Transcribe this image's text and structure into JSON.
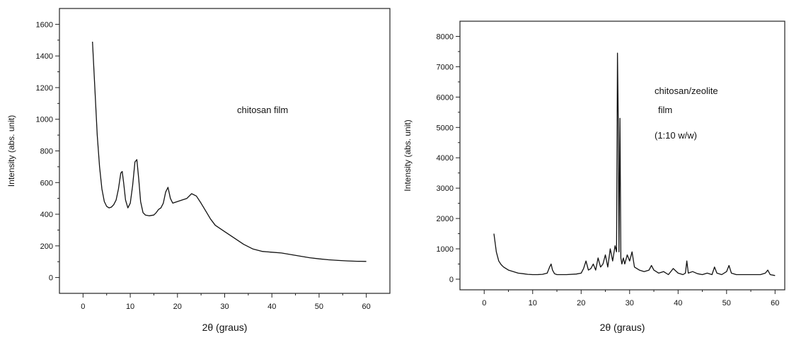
{
  "chart_data": [
    {
      "type": "line",
      "xlabel": "2θ (graus)",
      "ylabel": "Intensity (abs. unit)",
      "xlim": [
        -5,
        65
      ],
      "ylim": [
        -100,
        1700
      ],
      "xticks": [
        0,
        10,
        20,
        30,
        40,
        50,
        60
      ],
      "yticks": [
        0,
        200,
        400,
        600,
        800,
        1000,
        1200,
        1400,
        1600
      ],
      "annotation": [
        "chitosan film"
      ],
      "series": [
        {
          "x": [
            2,
            2.5,
            3,
            3.5,
            4,
            4.5,
            5,
            5.5,
            6,
            6.5,
            7,
            7.5,
            8,
            8.3,
            8.6,
            9,
            9.5,
            10,
            10.5,
            11,
            11.4,
            11.8,
            12.2,
            12.7,
            13.2,
            14,
            15,
            15.5,
            16,
            16.5,
            17,
            17.5,
            18,
            18.5,
            19,
            20,
            21,
            22,
            23,
            24,
            25,
            26,
            27,
            28,
            30,
            32,
            34,
            36,
            38,
            40,
            42,
            44,
            46,
            48,
            50,
            52,
            54,
            56,
            58,
            60
          ],
          "y": [
            1490,
            1200,
            900,
            700,
            560,
            480,
            450,
            440,
            445,
            460,
            490,
            560,
            660,
            670,
            600,
            490,
            440,
            470,
            580,
            730,
            745,
            620,
            480,
            410,
            395,
            390,
            395,
            410,
            430,
            440,
            470,
            540,
            570,
            500,
            470,
            480,
            490,
            500,
            530,
            515,
            470,
            420,
            370,
            330,
            290,
            250,
            210,
            180,
            165,
            160,
            155,
            145,
            135,
            125,
            118,
            112,
            108,
            105,
            103,
            102
          ]
        }
      ]
    },
    {
      "type": "line",
      "xlabel": "2θ (graus)",
      "ylabel": "Intensity (abs. unit)",
      "xlim": [
        -5,
        62
      ],
      "ylim": [
        -350,
        8500
      ],
      "xticks": [
        0,
        10,
        20,
        30,
        40,
        50,
        60
      ],
      "yticks": [
        0,
        1000,
        2000,
        3000,
        4000,
        5000,
        6000,
        7000,
        8000
      ],
      "annotation": [
        "chitosan/zeolite",
        "film",
        "(1:10 w/w)"
      ],
      "series": [
        {
          "x": [
            2,
            2.5,
            3,
            3.5,
            4,
            5,
            6,
            7,
            8,
            9,
            10,
            11,
            12,
            13,
            13.5,
            13.8,
            14.1,
            14.5,
            15,
            17,
            19,
            20,
            20.5,
            21,
            21.5,
            22,
            22.5,
            23,
            23.5,
            24,
            24.5,
            25,
            25.5,
            26,
            26.5,
            27,
            27.3,
            27.5,
            27.65,
            27.8,
            28,
            28.2,
            28.4,
            28.7,
            29,
            29.5,
            30,
            30.5,
            31,
            32,
            33,
            34,
            34.5,
            35,
            36,
            37,
            38,
            39,
            40,
            41,
            41.5,
            41.8,
            42.1,
            43,
            44,
            45,
            46,
            47,
            47.5,
            48,
            49,
            50,
            50.5,
            51,
            52,
            54,
            56,
            57,
            58,
            58.5,
            59,
            60
          ],
          "y": [
            1500,
            900,
            600,
            480,
            400,
            300,
            250,
            200,
            180,
            160,
            150,
            150,
            160,
            200,
            400,
            500,
            300,
            180,
            150,
            150,
            170,
            200,
            350,
            600,
            300,
            350,
            500,
            300,
            700,
            400,
            500,
            800,
            400,
            1000,
            600,
            1100,
            900,
            7450,
            5200,
            900,
            5300,
            700,
            500,
            700,
            500,
            800,
            600,
            900,
            400,
            300,
            250,
            300,
            450,
            300,
            200,
            250,
            150,
            350,
            200,
            150,
            200,
            600,
            200,
            250,
            180,
            150,
            200,
            150,
            400,
            200,
            150,
            250,
            450,
            200,
            150,
            150,
            150,
            150,
            200,
            300,
            150,
            120
          ]
        }
      ]
    }
  ]
}
